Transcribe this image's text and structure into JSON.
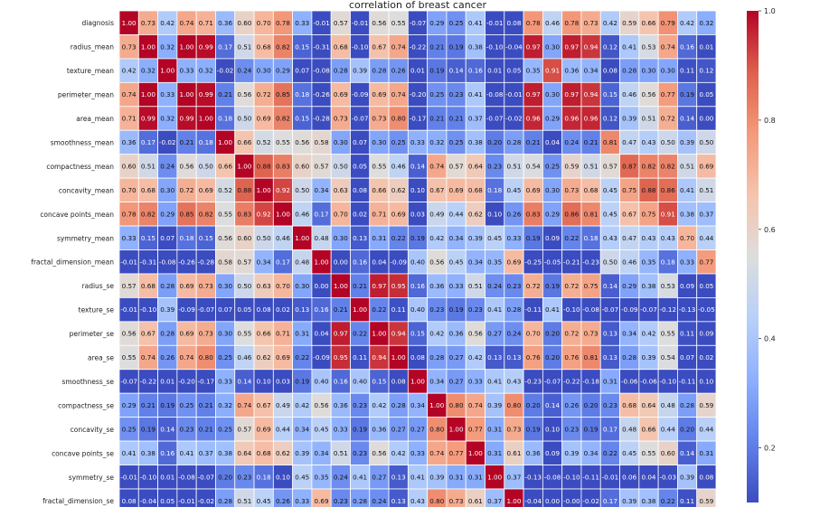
{
  "chart_data": {
    "type": "heatmap",
    "title": "correlation of breast cancer",
    "row_labels": [
      "diagnosis",
      "radius_mean",
      "texture_mean",
      "perimeter_mean",
      "area_mean",
      "smoothness_mean",
      "compactness_mean",
      "concavity_mean",
      "concave points_mean",
      "symmetry_mean",
      "fractal_dimension_mean",
      "radius_se",
      "texture_se",
      "perimeter_se",
      "area_se",
      "smoothness_se",
      "compactness_se",
      "concavity_se",
      "concave points_se",
      "symmetry_se",
      "fractal_dimension_se"
    ],
    "n_columns_visible": 31,
    "values": [
      [
        "1.00",
        "0.73",
        "0.42",
        "0.74",
        "0.71",
        "0.36",
        "0.60",
        "0.70",
        "0.78",
        "0.33",
        "-0.01",
        "0.57",
        "-0.01",
        "0.56",
        "0.55",
        "-0.07",
        "0.29",
        "0.25",
        "0.41",
        "-0.01",
        "0.08",
        "0.78",
        "0.46",
        "0.78",
        "0.73",
        "0.42",
        "0.59",
        "0.66",
        "0.79",
        "0.42",
        "0.32"
      ],
      [
        "0.73",
        "1.00",
        "0.32",
        "1.00",
        "0.99",
        "0.17",
        "0.51",
        "0.68",
        "0.82",
        "0.15",
        "-0.31",
        "0.68",
        "-0.10",
        "0.67",
        "0.74",
        "-0.22",
        "0.21",
        "0.19",
        "0.38",
        "-0.10",
        "-0.04",
        "0.97",
        "0.30",
        "0.97",
        "0.94",
        "0.12",
        "0.41",
        "0.53",
        "0.74",
        "0.16",
        "0.01"
      ],
      [
        "0.42",
        "0.32",
        "1.00",
        "0.33",
        "0.32",
        "-0.02",
        "0.24",
        "0.30",
        "0.29",
        "0.07",
        "-0.08",
        "0.28",
        "0.39",
        "0.28",
        "0.26",
        "0.01",
        "0.19",
        "0.14",
        "0.16",
        "0.01",
        "0.05",
        "0.35",
        "0.91",
        "0.36",
        "0.34",
        "0.08",
        "0.28",
        "0.30",
        "0.30",
        "0.11",
        "0.12"
      ],
      [
        "0.74",
        "1.00",
        "0.33",
        "1.00",
        "0.99",
        "0.21",
        "0.56",
        "0.72",
        "0.85",
        "0.18",
        "-0.26",
        "0.69",
        "-0.09",
        "0.69",
        "0.74",
        "-0.20",
        "0.25",
        "0.23",
        "0.41",
        "-0.08",
        "-0.01",
        "0.97",
        "0.30",
        "0.97",
        "0.94",
        "0.15",
        "0.46",
        "0.56",
        "0.77",
        "0.19",
        "0.05"
      ],
      [
        "0.71",
        "0.99",
        "0.32",
        "0.99",
        "1.00",
        "0.18",
        "0.50",
        "0.69",
        "0.82",
        "0.15",
        "-0.28",
        "0.73",
        "-0.07",
        "0.73",
        "0.80",
        "-0.17",
        "0.21",
        "0.21",
        "0.37",
        "-0.07",
        "-0.02",
        "0.96",
        "0.29",
        "0.96",
        "0.96",
        "0.12",
        "0.39",
        "0.51",
        "0.72",
        "0.14",
        "0.00"
      ],
      [
        "0.36",
        "0.17",
        "-0.02",
        "0.21",
        "0.18",
        "1.00",
        "0.66",
        "0.52",
        "0.55",
        "0.56",
        "0.58",
        "0.30",
        "0.07",
        "0.30",
        "0.25",
        "0.33",
        "0.32",
        "0.25",
        "0.38",
        "0.20",
        "0.28",
        "0.21",
        "0.04",
        "0.24",
        "0.21",
        "0.81",
        "0.47",
        "0.43",
        "0.50",
        "0.39",
        "0.50"
      ],
      [
        "0.60",
        "0.51",
        "0.24",
        "0.56",
        "0.50",
        "0.66",
        "1.00",
        "0.88",
        "0.83",
        "0.60",
        "0.57",
        "0.50",
        "0.05",
        "0.55",
        "0.46",
        "0.14",
        "0.74",
        "0.57",
        "0.64",
        "0.23",
        "0.51",
        "0.54",
        "0.25",
        "0.59",
        "0.51",
        "0.57",
        "0.87",
        "0.82",
        "0.82",
        "0.51",
        "0.69"
      ],
      [
        "0.70",
        "0.68",
        "0.30",
        "0.72",
        "0.69",
        "0.52",
        "0.88",
        "1.00",
        "0.92",
        "0.50",
        "0.34",
        "0.63",
        "0.08",
        "0.66",
        "0.62",
        "0.10",
        "0.67",
        "0.69",
        "0.68",
        "0.18",
        "0.45",
        "0.69",
        "0.30",
        "0.73",
        "0.68",
        "0.45",
        "0.75",
        "0.88",
        "0.86",
        "0.41",
        "0.51"
      ],
      [
        "0.78",
        "0.82",
        "0.29",
        "0.85",
        "0.82",
        "0.55",
        "0.83",
        "0.92",
        "1.00",
        "0.46",
        "0.17",
        "0.70",
        "0.02",
        "0.71",
        "0.69",
        "0.03",
        "0.49",
        "0.44",
        "0.62",
        "0.10",
        "0.26",
        "0.83",
        "0.29",
        "0.86",
        "0.81",
        "0.45",
        "0.67",
        "0.75",
        "0.91",
        "0.38",
        "0.37"
      ],
      [
        "0.33",
        "0.15",
        "0.07",
        "0.18",
        "0.15",
        "0.56",
        "0.60",
        "0.50",
        "0.46",
        "1.00",
        "0.48",
        "0.30",
        "0.13",
        "0.31",
        "0.22",
        "0.19",
        "0.42",
        "0.34",
        "0.39",
        "0.45",
        "0.33",
        "0.19",
        "0.09",
        "0.22",
        "0.18",
        "0.43",
        "0.47",
        "0.43",
        "0.43",
        "0.70",
        "0.44"
      ],
      [
        "-0.01",
        "-0.31",
        "-0.08",
        "-0.26",
        "-0.28",
        "0.58",
        "0.57",
        "0.34",
        "0.17",
        "0.48",
        "1.00",
        "0.00",
        "0.16",
        "0.04",
        "-0.09",
        "0.40",
        "0.56",
        "0.45",
        "0.34",
        "0.35",
        "0.69",
        "-0.25",
        "-0.05",
        "-0.21",
        "-0.23",
        "0.50",
        "0.46",
        "0.35",
        "0.18",
        "0.33",
        "0.77"
      ],
      [
        "0.57",
        "0.68",
        "0.28",
        "0.69",
        "0.73",
        "0.30",
        "0.50",
        "0.63",
        "0.70",
        "0.30",
        "0.00",
        "1.00",
        "0.21",
        "0.97",
        "0.95",
        "0.16",
        "0.36",
        "0.33",
        "0.51",
        "0.24",
        "0.23",
        "0.72",
        "0.19",
        "0.72",
        "0.75",
        "0.14",
        "0.29",
        "0.38",
        "0.53",
        "0.09",
        "0.05"
      ],
      [
        "-0.01",
        "-0.10",
        "0.39",
        "-0.09",
        "-0.07",
        "0.07",
        "0.05",
        "0.08",
        "0.02",
        "0.13",
        "0.16",
        "0.21",
        "1.00",
        "0.22",
        "0.11",
        "0.40",
        "0.23",
        "0.19",
        "0.23",
        "0.41",
        "0.28",
        "-0.11",
        "0.41",
        "-0.10",
        "-0.08",
        "-0.07",
        "-0.09",
        "-0.07",
        "-0.12",
        "-0.13",
        "-0.05"
      ],
      [
        "0.56",
        "0.67",
        "0.28",
        "0.69",
        "0.73",
        "0.30",
        "0.55",
        "0.66",
        "0.71",
        "0.31",
        "0.04",
        "0.97",
        "0.22",
        "1.00",
        "0.94",
        "0.15",
        "0.42",
        "0.36",
        "0.56",
        "0.27",
        "0.24",
        "0.70",
        "0.20",
        "0.72",
        "0.73",
        "0.13",
        "0.34",
        "0.42",
        "0.55",
        "0.11",
        "0.09"
      ],
      [
        "0.55",
        "0.74",
        "0.26",
        "0.74",
        "0.80",
        "0.25",
        "0.46",
        "0.62",
        "0.69",
        "0.22",
        "-0.09",
        "0.95",
        "0.11",
        "0.94",
        "1.00",
        "0.08",
        "0.28",
        "0.27",
        "0.42",
        "0.13",
        "0.13",
        "0.76",
        "0.20",
        "0.76",
        "0.81",
        "0.13",
        "0.28",
        "0.39",
        "0.54",
        "0.07",
        "0.02"
      ],
      [
        "-0.07",
        "-0.22",
        "0.01",
        "-0.20",
        "-0.17",
        "0.33",
        "0.14",
        "0.10",
        "0.03",
        "0.19",
        "0.40",
        "0.16",
        "0.40",
        "0.15",
        "0.08",
        "1.00",
        "0.34",
        "0.27",
        "0.33",
        "0.41",
        "0.43",
        "-0.23",
        "-0.07",
        "-0.22",
        "-0.18",
        "0.31",
        "-0.06",
        "-0.06",
        "-0.10",
        "-0.11",
        "0.10"
      ],
      [
        "0.29",
        "0.21",
        "0.19",
        "0.25",
        "0.21",
        "0.32",
        "0.74",
        "0.67",
        "0.49",
        "0.42",
        "0.56",
        "0.36",
        "0.23",
        "0.42",
        "0.28",
        "0.34",
        "1.00",
        "0.80",
        "0.74",
        "0.39",
        "0.80",
        "0.20",
        "0.14",
        "0.26",
        "0.20",
        "0.23",
        "0.68",
        "0.64",
        "0.48",
        "0.28",
        "0.59"
      ],
      [
        "0.25",
        "0.19",
        "0.14",
        "0.23",
        "0.21",
        "0.25",
        "0.57",
        "0.69",
        "0.44",
        "0.34",
        "0.45",
        "0.33",
        "0.19",
        "0.36",
        "0.27",
        "0.27",
        "0.80",
        "1.00",
        "0.77",
        "0.31",
        "0.73",
        "0.19",
        "0.10",
        "0.23",
        "0.19",
        "0.17",
        "0.48",
        "0.66",
        "0.44",
        "0.20",
        "0.44"
      ],
      [
        "0.41",
        "0.38",
        "0.16",
        "0.41",
        "0.37",
        "0.38",
        "0.64",
        "0.68",
        "0.62",
        "0.39",
        "0.34",
        "0.51",
        "0.23",
        "0.56",
        "0.42",
        "0.33",
        "0.74",
        "0.77",
        "1.00",
        "0.31",
        "0.61",
        "0.36",
        "0.09",
        "0.39",
        "0.34",
        "0.22",
        "0.45",
        "0.55",
        "0.60",
        "0.14",
        "0.31"
      ],
      [
        "-0.01",
        "-0.10",
        "0.01",
        "-0.08",
        "-0.07",
        "0.20",
        "0.23",
        "0.18",
        "0.10",
        "0.45",
        "0.35",
        "0.24",
        "0.41",
        "0.27",
        "0.13",
        "0.41",
        "0.39",
        "0.31",
        "0.31",
        "1.00",
        "0.37",
        "-0.13",
        "-0.08",
        "-0.10",
        "-0.11",
        "-0.01",
        "0.06",
        "0.04",
        "-0.03",
        "0.39",
        "0.08"
      ],
      [
        "0.08",
        "-0.04",
        "0.05",
        "-0.01",
        "-0.02",
        "0.28",
        "0.51",
        "0.45",
        "0.26",
        "0.33",
        "0.69",
        "0.23",
        "0.28",
        "0.24",
        "0.13",
        "0.43",
        "0.80",
        "0.73",
        "0.61",
        "0.37",
        "1.00",
        "-0.04",
        "0.00",
        "-0.00",
        "-0.02",
        "0.17",
        "0.39",
        "0.38",
        "0.22",
        "0.11",
        "0.59"
      ]
    ],
    "color_scale": "coolwarm",
    "color_range": [
      0.1,
      1.0
    ],
    "colorbar_ticks": [
      "0.2",
      "0.4",
      "0.6",
      "0.8",
      "1.0"
    ],
    "colorbar_tick_values": [
      0.2,
      0.4,
      0.6,
      0.8,
      1.0
    ],
    "grid_lines": "white"
  }
}
